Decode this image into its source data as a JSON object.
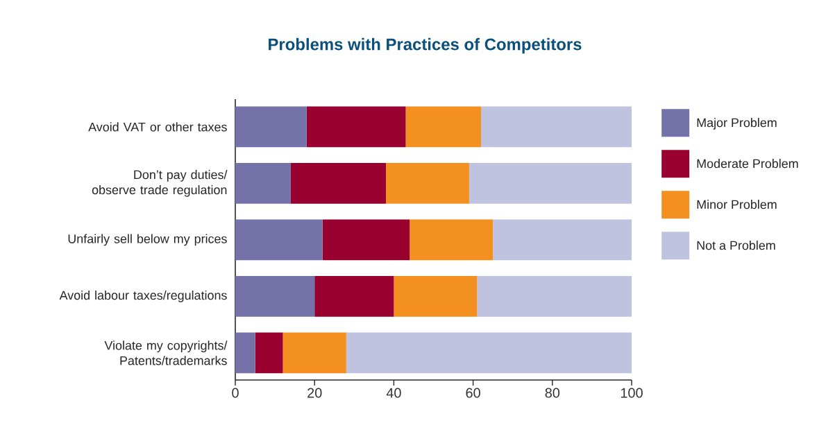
{
  "chart_data": {
    "type": "bar",
    "orientation": "horizontal",
    "stacked": true,
    "title": "Problems with Practices of Competitors",
    "categories": [
      "Avoid VAT or other taxes",
      "Don’t pay duties/ observe trade regulation",
      "Unfairly sell below my prices",
      "Avoid labour taxes/regulations",
      "Violate my copyrights/ Patents/trademarks"
    ],
    "series": [
      {
        "name": "Major Problem",
        "color": "#7472a8",
        "values": [
          18,
          14,
          22,
          20,
          5
        ]
      },
      {
        "name": "Moderate Problem",
        "color": "#99002f",
        "values": [
          25,
          24,
          22,
          20,
          7
        ]
      },
      {
        "name": "Minor Problem",
        "color": "#f39020",
        "values": [
          19,
          21,
          21,
          21,
          16
        ]
      },
      {
        "name": "Not a Problem",
        "color": "#c0c3df",
        "values": [
          38,
          41,
          35,
          39,
          72
        ]
      }
    ],
    "xlim": [
      0,
      100
    ],
    "xticks": [
      0,
      20,
      40,
      60,
      80,
      100
    ],
    "legend": "right"
  }
}
